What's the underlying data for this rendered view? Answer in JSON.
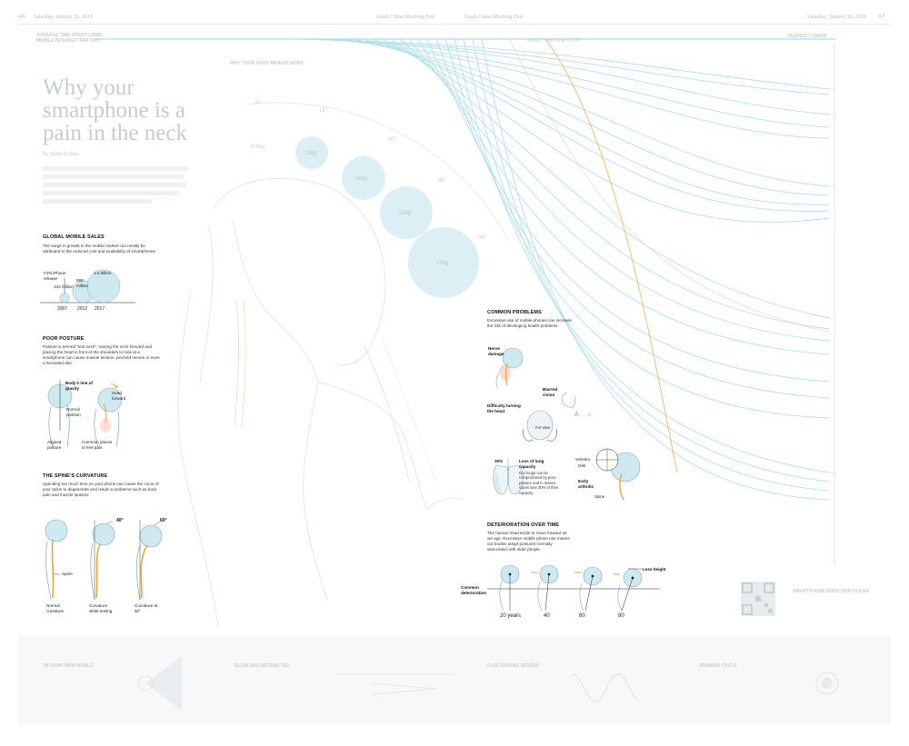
{
  "header": {
    "page_left": "A6",
    "date_left": "Saturday, January 26, 2019",
    "paper_left": "South China Morning Post",
    "paper_right": "South China Morning Post",
    "date_right": "Saturday, January 26, 2019",
    "page_right": "A7"
  },
  "top_axis": {
    "left_label_1": "AVERAGE TIME SPENT USING",
    "left_label_2": "MOBILE INTERNET PER DAY",
    "right_label": "HEAVIEST USERS",
    "center_label": "MORE THAN ONE HOUR"
  },
  "story": {
    "title": "Why your smartphone is a pain in the neck",
    "byline": "By Pablo Robles"
  },
  "center_annotation": {
    "weight_title": "WHY YOUR HEAD WEIGHS MORE",
    "kg_label": "4-6kg",
    "angles": [
      "0°",
      "15°",
      "30°",
      "45°",
      "60°"
    ],
    "weights": [
      "12kg",
      "18kg",
      "22kg",
      "27kg"
    ]
  },
  "global_sales": {
    "title": "GLOBAL MOBILE SALES",
    "body": "The surge in growth in the mobile market can mostly be attributed to the reduced cost and availability of smartphones",
    "first_iphone_label": "First iPhone release",
    "bubbles": [
      {
        "year": "2007",
        "value_label": "122 million",
        "value": 122
      },
      {
        "year": "2012",
        "value_label": "680 million",
        "value": 680
      },
      {
        "year": "2017",
        "value_label": "1.5 billion",
        "value": 1500
      }
    ]
  },
  "poor_posture": {
    "title": "POOR POSTURE",
    "body": "Posture is termed \"text neck\", rearing the neck forward and placing the head in front of the shoulders to look at a smartphone can cause muscle tension, pinched nerves or even a herniated disc",
    "labels": {
      "line_of_gravity": "Body's line of gravity",
      "normal_position": "Normal position",
      "head_forward": "Head forward",
      "aligned_posture": "Aligned posture",
      "common_places": "Common places to feel pain"
    }
  },
  "spine_curvature": {
    "title": "THE SPINE'S CURVATURE",
    "body": "Spending too much time on your phone can cause the curve of your spine to degenerate and result in problems such as back pain and muscle spasms",
    "angle_1": "40°",
    "angle_2": "60°",
    "spine_label": "Spine",
    "figures": [
      "Normal curvature",
      "Curvature while texting",
      "Curvature at 60°"
    ]
  },
  "common_problems": {
    "title": "COMMON PROBLEMS",
    "body": "Excessive use of mobile phones can increase the risk of developing health problems",
    "nerve_damage": "Nerve damage",
    "blurred_vision": "Blurred vision",
    "difficulty": "Difficulty turning the head",
    "for_view": "For view",
    "lung_percent": "30%",
    "loss_lung_title": "Loss of lung capacity",
    "loss_lung_body": "Our lungs can be compromised by poor posture and in severe cases lose 30% of their capacity",
    "vertebra": "Vertebra",
    "disk": "Disk",
    "early_arthritis": "Early arthritis",
    "spine": "Spine"
  },
  "deterioration": {
    "title": "DETERIORATION OVER TIME",
    "body": "The human head tends to move forward as we age. Excessive mobile phone use means our bodies adopt postures normally associated with older people",
    "common_label": "Common deterioration",
    "less_height": "Less height",
    "ages": [
      "20 years",
      "40",
      "60",
      "80"
    ]
  },
  "bottom_band": {
    "sections": [
      {
        "title": "IN YOUR OWN WORLD"
      },
      {
        "title": "SLOW AND DISTRACTED"
      },
      {
        "title": "FLUCTUATING SPEEDS"
      },
      {
        "title": "REWARD CYCLE"
      }
    ]
  },
  "right_panel": {
    "title": "SMARTPHONE ADDICTION IN ASIA"
  },
  "colors": {
    "line_blue": "#a9dde7",
    "bubble_blue": "#cfe9f1",
    "accent_orange": "#f2a33a",
    "faint_text": "#c4cbd0"
  }
}
